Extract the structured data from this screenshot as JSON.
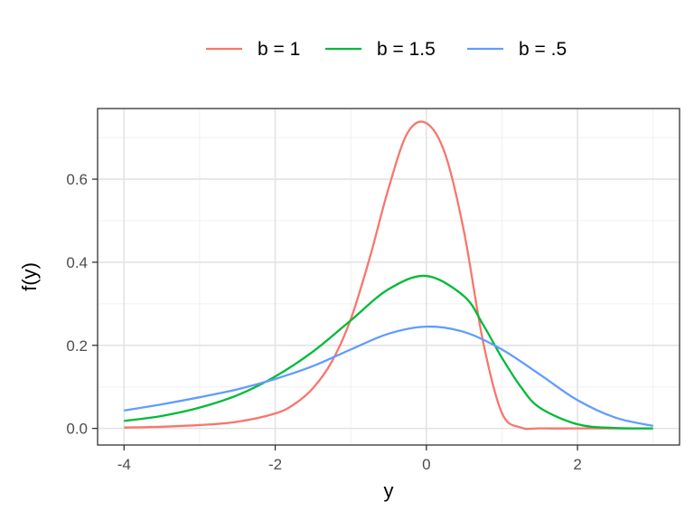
{
  "chart_data": {
    "type": "line",
    "xlabel": "y",
    "ylabel": "f(y)",
    "xlim": [
      -4.35,
      3.35
    ],
    "ylim": [
      -0.04,
      0.77
    ],
    "x_ticks": [
      -4,
      -2,
      0,
      2
    ],
    "x_tick_labels": [
      "-4",
      "-2",
      "0",
      "2"
    ],
    "y_ticks": [
      0.0,
      0.2,
      0.4,
      0.6
    ],
    "y_tick_labels": [
      "0.0",
      "0.2",
      "0.4",
      "0.6"
    ],
    "x_minor_ticks": [
      -3,
      -1,
      1,
      3
    ],
    "y_minor_ticks": [
      0.1,
      0.3,
      0.5,
      0.7
    ],
    "grid": true,
    "legend_position": "top",
    "series": [
      {
        "name": "b = 1",
        "color": "#F8766D",
        "x": [
          -4.0,
          -3.5,
          -3.0,
          -2.5,
          -2.0,
          -1.75,
          -1.5,
          -1.25,
          -1.0,
          -0.75,
          -0.5,
          -0.25,
          0.0,
          0.25,
          0.5,
          0.75,
          1.0,
          1.25,
          1.5,
          2.0,
          2.5,
          3.0
        ],
        "y": [
          0.002,
          0.004,
          0.008,
          0.016,
          0.036,
          0.058,
          0.097,
          0.161,
          0.263,
          0.41,
          0.578,
          0.711,
          0.735,
          0.66,
          0.472,
          0.209,
          0.037,
          0.002,
          0.0,
          0.0,
          0.0,
          0.0
        ]
      },
      {
        "name": "b = 1.5",
        "color": "#00BA38",
        "x": [
          -4.0,
          -3.5,
          -3.0,
          -2.5,
          -2.0,
          -1.5,
          -1.0,
          -0.5,
          0.0,
          0.5,
          0.75,
          1.0,
          1.25,
          1.5,
          2.0,
          2.5,
          3.0
        ],
        "y": [
          0.018,
          0.03,
          0.05,
          0.08,
          0.125,
          0.185,
          0.26,
          0.335,
          0.367,
          0.318,
          0.25,
          0.17,
          0.1,
          0.05,
          0.01,
          0.001,
          0.0
        ]
      },
      {
        "name": "b = .5",
        "color": "#619CFF",
        "x": [
          -4.0,
          -3.5,
          -3.0,
          -2.5,
          -2.0,
          -1.5,
          -1.0,
          -0.5,
          0.0,
          0.5,
          1.0,
          1.5,
          2.0,
          2.5,
          3.0
        ],
        "y": [
          0.043,
          0.058,
          0.075,
          0.094,
          0.119,
          0.15,
          0.19,
          0.228,
          0.245,
          0.232,
          0.19,
          0.13,
          0.068,
          0.026,
          0.006
        ]
      }
    ]
  }
}
